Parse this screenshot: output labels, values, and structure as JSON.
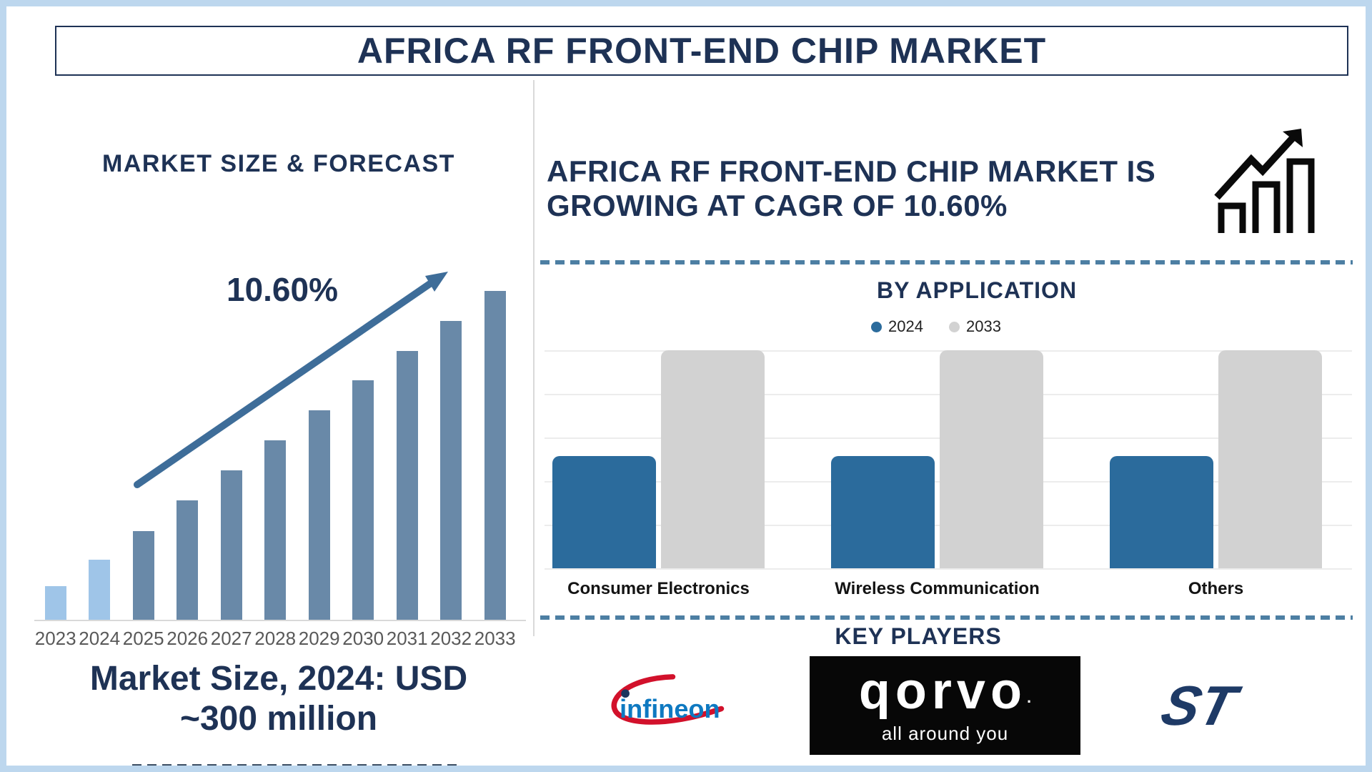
{
  "title": "AFRICA RF FRONT-END CHIP MARKET",
  "left_panel": {
    "heading": "MARKET SIZE & FORECAST",
    "cagr_label": "10.60%",
    "footer_line1": "Market Size, 2024: USD",
    "footer_line2": "~300 million"
  },
  "right_panel": {
    "heading_lines": [
      "AFRICA RF FRONT-END CHIP MARKET IS",
      "GROWING AT CAGR OF 10.60%"
    ],
    "by_application_title": "BY APPLICATION",
    "key_players_title": "KEY PLAYERS",
    "players": {
      "infineon_wordmark": "infineon",
      "qorvo_wordmark": "qorvo",
      "qorvo_reg_mark": ".",
      "qorvo_tagline": "all around you",
      "st_wordmark": "ST"
    }
  },
  "colors": {
    "navy": "#1e3255",
    "frame": "#bdd7ee",
    "light_bar": "#9fc5e8",
    "slate_bar": "#6989a8",
    "arrow": "#3e6d99",
    "app_blue": "#2b6b9c",
    "app_gray": "#d2d2d2",
    "gridline": "#ececec",
    "dash": "#4d7fa3",
    "year_label": "#595959",
    "category_label": "#141414",
    "divider": "#d9d9d9",
    "infineon_blue": "#0e79c1",
    "infineon_red": "#d2112b",
    "qorvo_bg": "#070707",
    "qorvo_text": "#ffffff",
    "st_navy": "#1e3a66",
    "icon_black": "#0a0a0a"
  },
  "chart_data": [
    {
      "type": "bar",
      "title": "MARKET SIZE & FORECAST",
      "categories": [
        "2023",
        "2024",
        "2025",
        "2026",
        "2027",
        "2028",
        "2029",
        "2030",
        "2031",
        "2032",
        "2033"
      ],
      "values": [
        48,
        85,
        125,
        168,
        210,
        252,
        294,
        336,
        377,
        419,
        461
      ],
      "units": "relative bar heights in px (no y-axis labels shown)",
      "annotation": "10.60%",
      "note": "Market Size, 2024: USD ~300 million",
      "highlight": "2023 and 2024 bars are light blue (historical); 2025-2033 slate blue (forecast)",
      "xlabel": "",
      "ylabel": "",
      "grid": false,
      "legend_position": "none"
    },
    {
      "type": "bar",
      "title": "BY APPLICATION",
      "categories": [
        "Consumer Electronics",
        "Wireless Communication",
        "Others"
      ],
      "series": [
        {
          "name": "2024",
          "color": "#2b6b9c",
          "values": [
            157,
            157,
            157
          ]
        },
        {
          "name": "2033",
          "color": "#d2d2d2",
          "values": [
            305,
            305,
            305
          ]
        }
      ],
      "units": "relative bar heights in px (no y-axis labels shown)",
      "legend_position": "top",
      "grid": true,
      "xlabel": "",
      "ylabel": ""
    }
  ]
}
